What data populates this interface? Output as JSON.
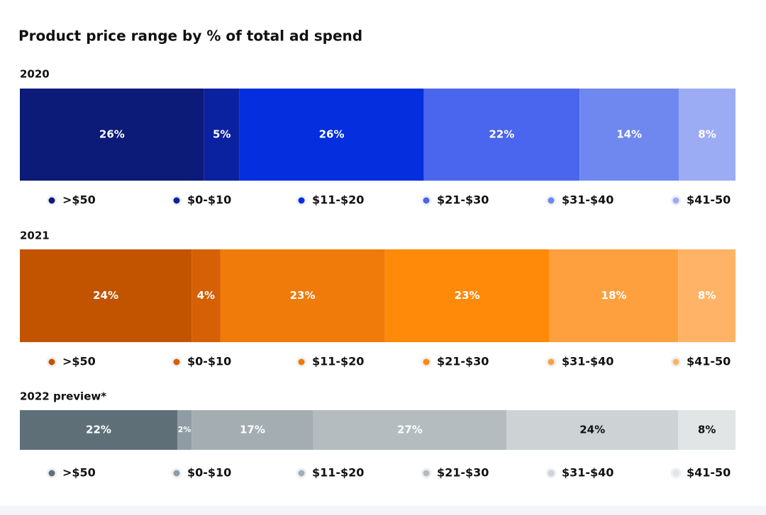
{
  "title": "Product price range by % of total ad spend",
  "chart_data": [
    {
      "type": "stacked_bar",
      "title": "2020",
      "series": [
        {
          "name": ">$50",
          "color": "#0c1a78",
          "values": [
            26
          ],
          "value_labels": [
            "26%"
          ]
        },
        {
          "name": "$0-$10",
          "color": "#0a22a0",
          "values": [
            5
          ],
          "value_labels": [
            "5%"
          ]
        },
        {
          "name": "$11-$20",
          "color": "#042ede",
          "values": [
            26
          ],
          "value_labels": [
            "26%"
          ]
        },
        {
          "name": "$21-$30",
          "color": "#4a66ee",
          "values": [
            22
          ],
          "value_labels": [
            "22%"
          ]
        },
        {
          "name": "$31-$40",
          "color": "#6f88f0",
          "values": [
            14
          ],
          "value_labels": [
            "14%"
          ]
        },
        {
          "name": "$41-50",
          "color": "#9cacf4",
          "values": [
            8
          ],
          "value_labels": [
            "8%"
          ]
        }
      ]
    },
    {
      "type": "stacked_bar",
      "title": "2021",
      "series": [
        {
          "name": ">$50",
          "color": "#c25400",
          "values": [
            24
          ],
          "value_labels": [
            "24%"
          ]
        },
        {
          "name": "$0-$10",
          "color": "#d56005",
          "values": [
            4
          ],
          "value_labels": [
            "4%"
          ]
        },
        {
          "name": "$11-$20",
          "color": "#f07a0a",
          "values": [
            23
          ],
          "value_labels": [
            "23%"
          ]
        },
        {
          "name": "$21-$30",
          "color": "#ff8a0a",
          "values": [
            23
          ],
          "value_labels": [
            "23%"
          ]
        },
        {
          "name": "$31-$40",
          "color": "#ffa03e",
          "values": [
            18
          ],
          "value_labels": [
            "18%"
          ]
        },
        {
          "name": "$41-50",
          "color": "#ffb366",
          "values": [
            8
          ],
          "value_labels": [
            "8%"
          ]
        }
      ]
    },
    {
      "type": "stacked_bar",
      "title": "2022 preview*",
      "series": [
        {
          "name": ">$50",
          "color": "#5f6f78",
          "values": [
            22
          ],
          "value_labels": [
            "22%"
          ]
        },
        {
          "name": "$0-$10",
          "color": "#8f9ca4",
          "values": [
            2
          ],
          "value_labels": [
            "2%"
          ]
        },
        {
          "name": "$11-$20",
          "color": "#a3adb2",
          "values": [
            17
          ],
          "value_labels": [
            "17%"
          ]
        },
        {
          "name": "$21-$30",
          "color": "#b4bcc0",
          "values": [
            27
          ],
          "value_labels": [
            "27%"
          ]
        },
        {
          "name": "$31-$40",
          "color": "#cdd3d5",
          "values": [
            24
          ],
          "value_labels": [
            "24%"
          ],
          "label_color": "#111111"
        },
        {
          "name": "$41-50",
          "color": "#e1e5e6",
          "values": [
            8
          ],
          "value_labels": [
            "8%"
          ],
          "label_color": "#111111"
        }
      ]
    }
  ]
}
